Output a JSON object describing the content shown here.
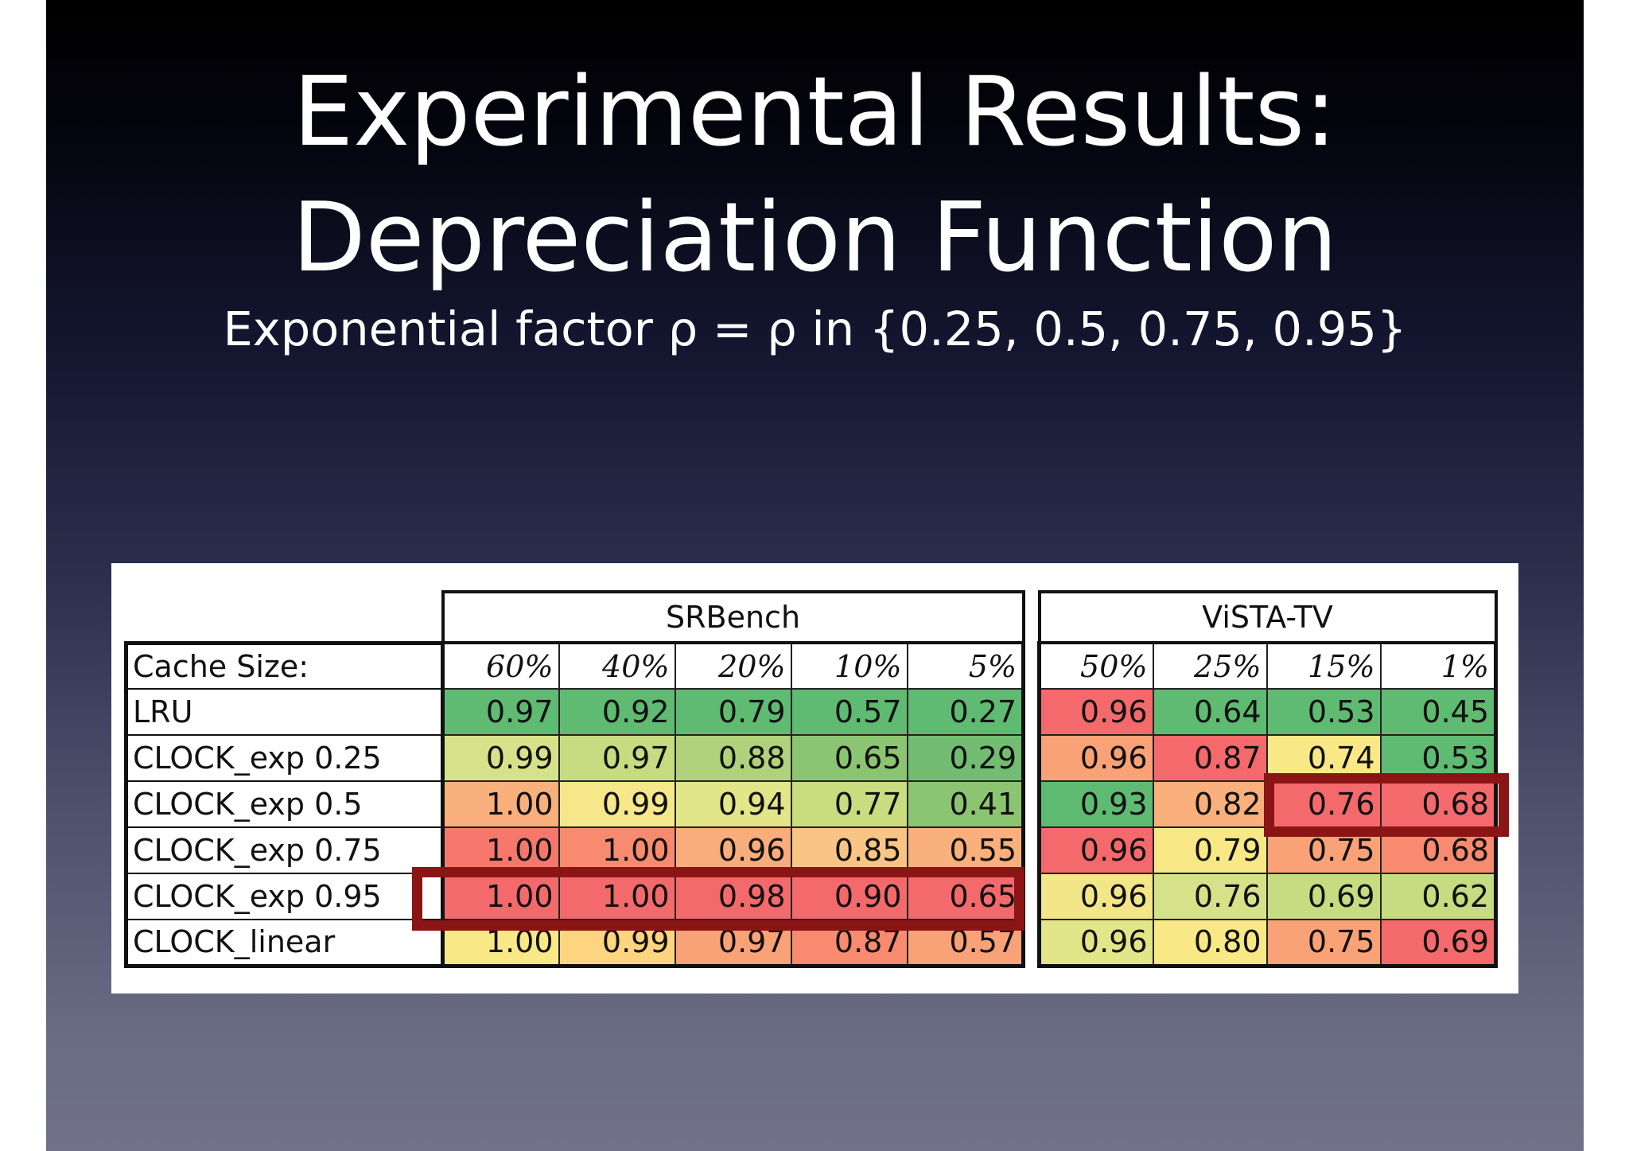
{
  "slide": {
    "title_line1": "Experimental Results:",
    "title_line2": "Depreciation Function",
    "subtitle": "Exponential factor ρ = ρ in {0.25, 0.5, 0.75, 0.95}"
  },
  "table": {
    "row_header_label": "Cache Size:",
    "row_labels": [
      "LRU",
      "CLOCK_exp 0.25",
      "CLOCK_exp 0.5",
      "CLOCK_exp 0.75",
      "CLOCK_exp 0.95",
      "CLOCK_linear"
    ],
    "srbench": {
      "name": "SRBench",
      "columns": [
        "60%",
        "40%",
        "20%",
        "10%",
        "5%"
      ],
      "rows": [
        [
          "0.97",
          "0.92",
          "0.79",
          "0.57",
          "0.27"
        ],
        [
          "0.99",
          "0.97",
          "0.88",
          "0.65",
          "0.29"
        ],
        [
          "1.00",
          "0.99",
          "0.94",
          "0.77",
          "0.41"
        ],
        [
          "1.00",
          "1.00",
          "0.96",
          "0.85",
          "0.55"
        ],
        [
          "1.00",
          "1.00",
          "0.98",
          "0.90",
          "0.65"
        ],
        [
          "1.00",
          "0.99",
          "0.97",
          "0.87",
          "0.57"
        ]
      ],
      "colors": [
        [
          "#5fba72",
          "#5fba72",
          "#5fba72",
          "#5fba72",
          "#5fba72"
        ],
        [
          "#d6e28a",
          "#c6dc80",
          "#b0d27c",
          "#8cc572",
          "#72bd72"
        ],
        [
          "#f9b07c",
          "#f6e88a",
          "#e3e589",
          "#c9dc7f",
          "#8cc572"
        ],
        [
          "#f6786c",
          "#f88a70",
          "#f9ad7c",
          "#f9c584",
          "#f9b07c"
        ],
        [
          "#f4696b",
          "#f4696b",
          "#f4696b",
          "#f4696b",
          "#f4696b"
        ],
        [
          "#f8e986",
          "#fdd47f",
          "#f9a277",
          "#f88a70",
          "#f9a277"
        ]
      ]
    },
    "vista": {
      "name": "ViSTA-TV",
      "columns": [
        "50%",
        "25%",
        "15%",
        "1%"
      ],
      "rows": [
        [
          "0.96",
          "0.64",
          "0.53",
          "0.45"
        ],
        [
          "0.96",
          "0.87",
          "0.74",
          "0.53"
        ],
        [
          "0.93",
          "0.82",
          "0.76",
          "0.68"
        ],
        [
          "0.96",
          "0.79",
          "0.75",
          "0.68"
        ],
        [
          "0.96",
          "0.76",
          "0.69",
          "0.62"
        ],
        [
          "0.96",
          "0.80",
          "0.75",
          "0.69"
        ]
      ],
      "colors": [
        [
          "#f4696b",
          "#5fba72",
          "#5fba72",
          "#5fba72"
        ],
        [
          "#f9a277",
          "#f4696b",
          "#f8e986",
          "#5fba72"
        ],
        [
          "#5fba72",
          "#f9b07c",
          "#f4696b",
          "#f4696b"
        ],
        [
          "#f4696b",
          "#f8e986",
          "#f9a277",
          "#f88a70"
        ],
        [
          "#f3e689",
          "#d6e28a",
          "#c6dc80",
          "#c6dc80"
        ],
        [
          "#e3e589",
          "#f8e986",
          "#f9a277",
          "#f4696b"
        ]
      ]
    }
  }
}
